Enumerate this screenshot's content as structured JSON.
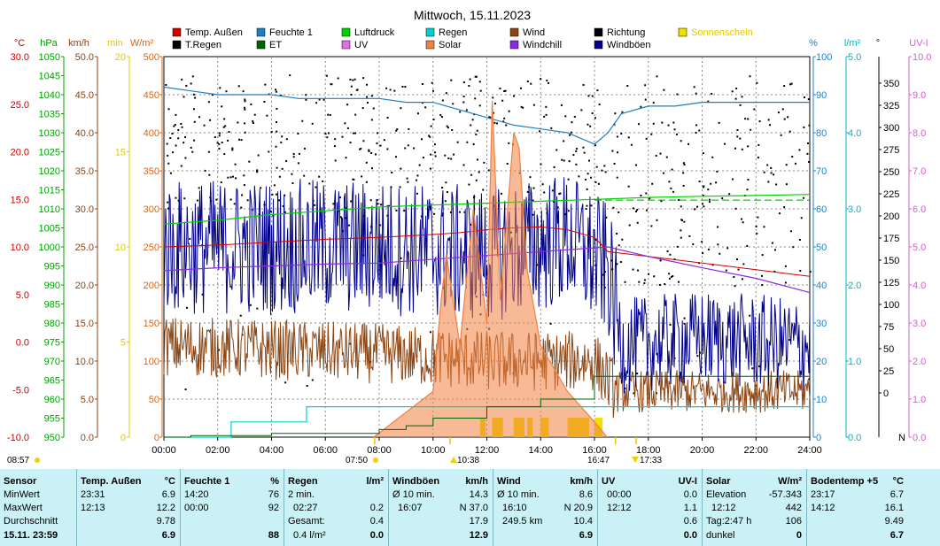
{
  "title": "Mittwoch, 15.11.2023",
  "chart_data": {
    "type": "line",
    "title": "Mittwoch, 15.11.2023",
    "x_ticks": [
      "00:00",
      "02:00",
      "04:00",
      "06:00",
      "08:00",
      "10:00",
      "12:00",
      "14:00",
      "16:00",
      "18:00",
      "20:00",
      "22:00",
      "24:00"
    ],
    "x_range_hours": [
      0,
      24
    ],
    "axes": {
      "temp": {
        "unit": "°C",
        "color": "#d00000",
        "ticks": [
          "30.0",
          "25.0",
          "20.0",
          "15.0",
          "10.0",
          "5.0",
          "0.0",
          "-5.0",
          "-10.0"
        ]
      },
      "pressure": {
        "unit": "hPa",
        "color": "#00a000",
        "ticks": [
          "1050",
          "1045",
          "1040",
          "1035",
          "1030",
          "1025",
          "1020",
          "1015",
          "1010",
          "1005",
          "1000",
          "995",
          "990",
          "985",
          "980",
          "975",
          "970",
          "965",
          "960",
          "955",
          "950"
        ]
      },
      "wind": {
        "unit": "km/h",
        "color": "#8b4513",
        "ticks": [
          "50.0",
          "45.0",
          "40.0",
          "35.0",
          "30.0",
          "25.0",
          "20.0",
          "15.0",
          "10.0",
          "5.0",
          "0.0"
        ]
      },
      "minutes": {
        "unit": "min",
        "color": "#e6c800",
        "ticks": [
          "20",
          "15",
          "10",
          "5",
          "0"
        ]
      },
      "solar": {
        "unit": "W/m²",
        "color": "#d2691e",
        "ticks": [
          "500",
          "450",
          "400",
          "350",
          "300",
          "250",
          "200",
          "150",
          "100",
          "50",
          "0"
        ]
      },
      "humidity": {
        "unit": "%",
        "color": "#1e7fc0",
        "ticks": [
          "100",
          "90",
          "80",
          "70",
          "60",
          "50",
          "40",
          "30",
          "20",
          "10",
          "0"
        ]
      },
      "rain": {
        "unit": "l/m²",
        "color": "#00b4c8",
        "ticks": [
          "5.0",
          "4.0",
          "3.0",
          "2.0",
          "1.0",
          "0.0"
        ]
      },
      "direction": {
        "unit": "°",
        "color": "#000000",
        "ticks": [
          "350",
          "325",
          "300",
          "275",
          "250",
          "225",
          "200",
          "175",
          "150",
          "125",
          "100",
          "75",
          "50",
          "25",
          "0"
        ],
        "north_label": "N"
      },
      "uvi": {
        "unit": "UV-I",
        "color": "#d060d0",
        "ticks": [
          "10.0",
          "9.0",
          "8.0",
          "7.0",
          "6.0",
          "5.0",
          "4.0",
          "3.0",
          "2.0",
          "1.0",
          "0.0"
        ]
      }
    },
    "legend": [
      {
        "name": "Temp. Außen",
        "color": "#d00000"
      },
      {
        "name": "Feuchte 1",
        "color": "#1e7fc0"
      },
      {
        "name": "Luftdruck",
        "color": "#00d000"
      },
      {
        "name": "Regen",
        "color": "#00d0d0"
      },
      {
        "name": "Wind",
        "color": "#8b4513"
      },
      {
        "name": "Richtung",
        "color": "#000000"
      },
      {
        "name": "Sonnenschein",
        "color": "#f0e000"
      },
      {
        "name": "T.Regen",
        "color": "#000000"
      },
      {
        "name": "ET",
        "color": "#006400"
      },
      {
        "name": "UV",
        "color": "#e070e0"
      },
      {
        "name": "Solar",
        "color": "#f08040"
      },
      {
        "name": "Windchill",
        "color": "#8a2be2"
      },
      {
        "name": "Windböen",
        "color": "#00008b"
      }
    ],
    "series": [
      {
        "name": "Temp. Außen",
        "axis": "temp",
        "x": [
          0,
          2,
          4,
          6,
          8,
          10,
          11,
          12,
          13,
          14,
          15,
          16,
          16.5,
          18,
          20,
          22,
          24
        ],
        "values": [
          10.0,
          10.2,
          10.5,
          10.8,
          11.0,
          11.3,
          11.5,
          11.8,
          12.0,
          12.1,
          11.8,
          11.0,
          9.5,
          9.0,
          8.3,
          7.6,
          6.9
        ]
      },
      {
        "name": "Feuchte 1",
        "axis": "humidity",
        "x": [
          0,
          1,
          2,
          3,
          4,
          5,
          6,
          7,
          8,
          9,
          10,
          11,
          12,
          13,
          14,
          15,
          16,
          16.5,
          17,
          18,
          19,
          20,
          21,
          22,
          23,
          24
        ],
        "values": [
          92,
          91,
          90,
          90,
          90,
          89,
          89,
          89,
          89,
          88,
          88,
          86,
          84,
          82,
          81,
          80,
          77,
          80,
          85,
          87,
          87,
          88,
          88,
          88,
          88,
          88
        ]
      },
      {
        "name": "Luftdruck",
        "axis": "pressure",
        "x": [
          0,
          2,
          4,
          6,
          8,
          10,
          12,
          14,
          16,
          18,
          20,
          22,
          24
        ],
        "values": [
          1006,
          1007,
          1008.5,
          1009.5,
          1010.5,
          1011,
          1011.5,
          1012,
          1012.5,
          1013,
          1013.3,
          1013.5,
          1013.8
        ]
      },
      {
        "name": "Windchill",
        "axis": "temp",
        "x": [
          0,
          2,
          4,
          6,
          8,
          16.5,
          18,
          20,
          22,
          24
        ],
        "values": [
          7.5,
          7.8,
          8.0,
          8.2,
          8.3,
          10.0,
          9.0,
          7.8,
          6.7,
          5.2
        ]
      },
      {
        "name": "Solar",
        "axis": "solar",
        "x": [
          7.8,
          10,
          10.3,
          10.5,
          11,
          11.5,
          12,
          12.2,
          12.5,
          13,
          13.2,
          13.5,
          14,
          15,
          16,
          16.47
        ],
        "values": [
          0,
          60,
          180,
          240,
          120,
          300,
          150,
          442,
          180,
          400,
          380,
          220,
          120,
          60,
          20,
          0
        ]
      },
      {
        "name": "Regen",
        "axis": "rain",
        "x": [
          0,
          2.4,
          2.5,
          5.2,
          5.3,
          16.5,
          24
        ],
        "values": [
          0,
          0,
          0.2,
          0.2,
          0.4,
          0.4,
          0.4
        ]
      },
      {
        "name": "ET",
        "axis": "rain",
        "x": [
          0,
          1,
          4,
          8,
          9,
          10,
          12,
          14,
          16,
          24
        ],
        "values": [
          0,
          0.02,
          0.05,
          0.1,
          0.15,
          0.25,
          0.4,
          0.5,
          0.8,
          0.8
        ]
      }
    ],
    "noisy_series": [
      {
        "name": "Windböen",
        "axis": "wind",
        "base": [
          [
            0,
            25
          ],
          [
            8,
            25
          ],
          [
            12,
            24
          ],
          [
            15,
            26
          ],
          [
            16.5,
            22
          ],
          [
            17,
            12
          ],
          [
            20,
            13
          ],
          [
            24,
            12
          ]
        ],
        "amplitude": 9
      },
      {
        "name": "Wind",
        "axis": "wind",
        "base": [
          [
            0,
            12
          ],
          [
            8,
            11
          ],
          [
            12,
            10
          ],
          [
            16,
            10
          ],
          [
            16.8,
            6
          ],
          [
            20,
            6
          ],
          [
            24,
            6
          ]
        ],
        "amplitude": 4
      }
    ],
    "sunshine_blocks_hours": [
      [
        11.75,
        11.95
      ],
      [
        12.2,
        12.6
      ],
      [
        13.0,
        13.4
      ],
      [
        13.5,
        13.7
      ],
      [
        14.0,
        14.3
      ],
      [
        15.0,
        15.8
      ],
      [
        16.0,
        16.3
      ]
    ],
    "day_markers": {
      "sunrise": "07:50",
      "solar_noon": "10:38",
      "end_of_day": "16:47",
      "sunset": "17:33",
      "left_marker": "08:57"
    }
  },
  "stats": {
    "sensor": {
      "header": "Sensor",
      "rows": [
        "MinWert",
        "MaxWert",
        "Durchschnitt",
        "15.11.  23:59"
      ]
    },
    "temp": {
      "header": "Temp. Außen",
      "unit": "°C",
      "min_time": "23:31",
      "min": "6.9",
      "max_time": "12:13",
      "max": "12.2",
      "avg": "9.78",
      "current": "6.9"
    },
    "humidity": {
      "header": "Feuchte 1",
      "unit": "%",
      "min_time": "14:20",
      "min": "76",
      "max_time": "00:00",
      "max": "92",
      "avg": "",
      "current": "88"
    },
    "rain": {
      "header": "Regen",
      "unit": "l/m²",
      "r1_label": "2 min.",
      "r1_value": "",
      "r2_label": "02:27",
      "r2_value": "0.2",
      "r3_label": "Gesamt:",
      "r3_value": "0.4",
      "r4_label": "0.4 l/m²",
      "current": "0.0"
    },
    "gusts": {
      "header": "Windböen",
      "unit": "km/h",
      "r1_label": "Ø 10 min.",
      "r1_value": "14.3",
      "r2_label": "16:07",
      "r2_mid": "N 37.0",
      "avg": "17.9",
      "current": "12.9"
    },
    "wind": {
      "header": "Wind",
      "unit": "km/h",
      "r1_label": "Ø 10 min.",
      "r1_value": "8.6",
      "r2_label": "16:10",
      "r2_mid": "N 20.9",
      "r3_label": "249.5 km",
      "r3_value": "10.4",
      "current": "6.9"
    },
    "uv": {
      "header": "UV",
      "unit": "UV-I",
      "r1_label": "00:00",
      "r1_value": "0.0",
      "r2_label": "12:12",
      "r2_value": "1.1",
      "avg": "0.6",
      "current": "0.0"
    },
    "solar": {
      "header": "Solar",
      "unit": "W/m²",
      "r1_label": "Elevation",
      "r1_value": "-57.343",
      "r2_label": "12:12",
      "r2_value": "442",
      "r3_label": "Tag:2:47 h",
      "r3_value": "106",
      "r4_label": "dunkel",
      "current": "0"
    },
    "soil": {
      "header": "Bodentemp +5",
      "unit": "°C",
      "min_time": "23:17",
      "min": "6.7",
      "max_time": "14:12",
      "max": "16.1",
      "avg": "9.49",
      "current": "6.7"
    }
  }
}
